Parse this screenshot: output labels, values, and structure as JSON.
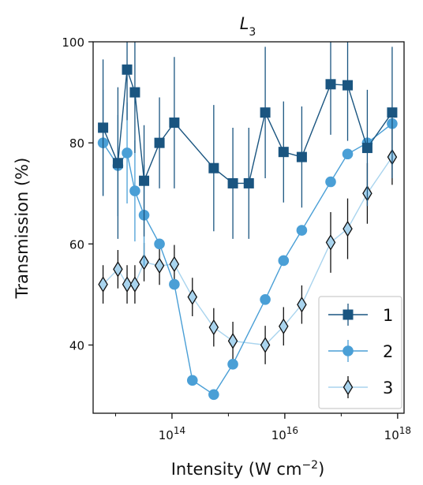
{
  "chart_data": {
    "type": "line",
    "title": "L",
    "title_subscript": "3",
    "xlabel": "Intensity (W cm",
    "xlabel_sup": "−2",
    "xlabel_suffix": ")",
    "ylabel": "Transmission (%)",
    "x_scale": "log",
    "xlim": [
      4000000000000.0,
      1.3e+18
    ],
    "ylim": [
      26.5,
      100
    ],
    "x_ticks": [
      {
        "value": 100000000000000.0,
        "base": "10",
        "exp": "14"
      },
      {
        "value": 1e+16,
        "base": "10",
        "exp": "16"
      },
      {
        "value": 1e+18,
        "base": "10",
        "exp": "18"
      }
    ],
    "y_ticks": [
      40,
      60,
      80,
      100
    ],
    "grid": false,
    "legend_position": "bottom-right",
    "series": [
      {
        "name": "1",
        "marker": "square",
        "color": "#1a5580",
        "x": [
          6000000000000.0,
          11000000000000.0,
          16000000000000.0,
          22000000000000.0,
          32000000000000.0,
          60000000000000.0,
          110000000000000.0,
          2300000000000000.0,
          550000000000000.0,
          1200000000000000.0,
          4500000000000000.0,
          9500000000000000.0,
          2e+16,
          6.5e+16,
          1.3e+17,
          2.9e+17,
          8e+17
        ],
        "y": [
          83,
          76,
          94.5,
          90,
          72.5,
          80,
          84,
          72,
          75,
          72,
          86,
          78.2,
          77.2,
          91.6,
          91.4,
          79,
          86
        ],
        "yerr": [
          13.5,
          15,
          10,
          12,
          11,
          9,
          13,
          11,
          12.5,
          11,
          13,
          10,
          10,
          10,
          11,
          11.5,
          13
        ]
      },
      {
        "name": "2",
        "marker": "circle",
        "color": "#4a9fd6",
        "x": [
          6000000000000.0,
          11000000000000.0,
          16000000000000.0,
          22000000000000.0,
          32000000000000.0,
          60000000000000.0,
          110000000000000.0,
          230000000000000.0,
          550000000000000.0,
          1200000000000000.0,
          4500000000000000.0,
          9500000000000000.0,
          2e+16,
          6.5e+16,
          1.3e+17,
          2.9e+17,
          8e+17
        ],
        "y": [
          80,
          75.5,
          78,
          70.5,
          65.7,
          60,
          52,
          33,
          30.2,
          36.2,
          49,
          56.7,
          62.7,
          72.3,
          77.8,
          80,
          83.8
        ],
        "yerr": [
          10.5,
          10,
          10,
          10,
          10,
          0,
          0,
          0,
          0,
          0,
          0,
          0,
          0,
          0,
          0,
          0,
          0
        ]
      },
      {
        "name": "3",
        "marker": "thin_diamond",
        "color": "#a9d4ee",
        "x": [
          6000000000000.0,
          11000000000000.0,
          16000000000000.0,
          22000000000000.0,
          32000000000000.0,
          60000000000000.0,
          110000000000000.0,
          230000000000000.0,
          550000000000000.0,
          1200000000000000.0,
          4500000000000000.0,
          9500000000000000.0,
          2e+16,
          6.5e+16,
          1.3e+17,
          2.9e+17,
          8e+17
        ],
        "y": [
          52,
          55,
          52,
          52,
          56.4,
          55.7,
          56,
          49.5,
          43.5,
          40.8,
          40,
          43.7,
          48,
          60.3,
          63,
          70,
          77.2
        ],
        "yerr": [
          3.8,
          3.8,
          3.8,
          3.8,
          3.8,
          3.8,
          3.8,
          3.8,
          3.8,
          3.8,
          3.8,
          3.8,
          3.8,
          6,
          6,
          6,
          5.5
        ]
      }
    ]
  }
}
